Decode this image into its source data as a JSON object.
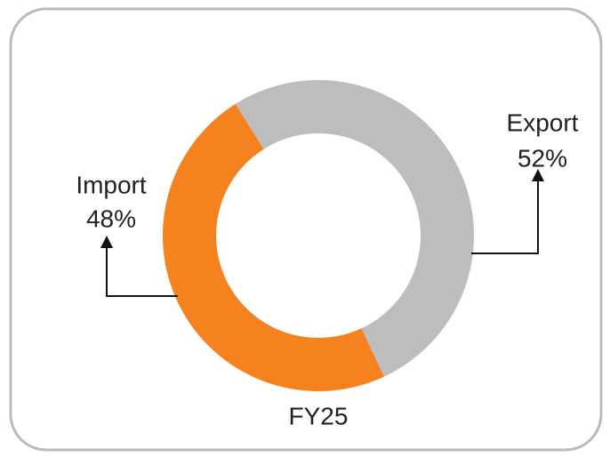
{
  "chart_data": {
    "type": "donut",
    "title": "FY25",
    "categories": [
      "Import",
      "Export"
    ],
    "values": [
      48,
      52
    ],
    "value_labels": [
      "48%",
      "52%"
    ],
    "colors": [
      "#f5821f",
      "#bdbdbe"
    ]
  }
}
